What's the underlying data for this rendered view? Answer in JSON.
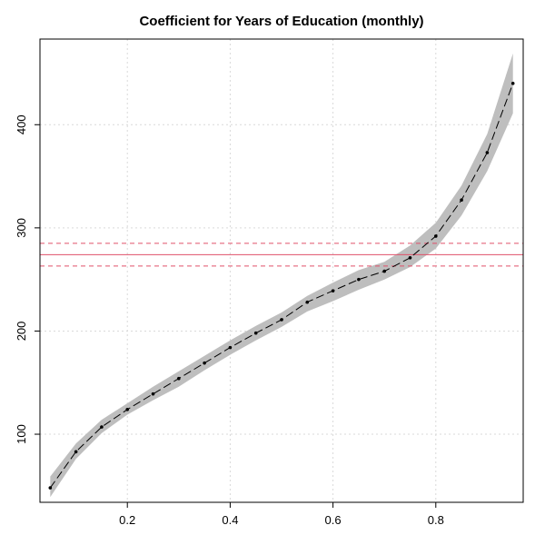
{
  "chart_data": {
    "type": "line",
    "title": "Coefficient for Years of Education (monthly)",
    "xlabel": "",
    "ylabel": "",
    "xlim": [
      0.03,
      0.97
    ],
    "ylim": [
      34,
      483
    ],
    "x_ticks": [
      0.2,
      0.4,
      0.6,
      0.8
    ],
    "y_ticks": [
      100,
      200,
      300,
      400
    ],
    "grid": true,
    "series": [
      {
        "x": [
          0.05,
          0.1,
          0.15,
          0.2,
          0.25,
          0.3,
          0.35,
          0.4,
          0.45,
          0.5,
          0.55,
          0.6,
          0.65,
          0.7,
          0.75,
          0.8,
          0.85,
          0.9,
          0.95
        ],
        "values": [
          48,
          83,
          107,
          124,
          139,
          154,
          169,
          184,
          198,
          211,
          228,
          239,
          250,
          258,
          271,
          292,
          327,
          373,
          440
        ],
        "lower": [
          39,
          76,
          101,
          119,
          133,
          146,
          162,
          177,
          191,
          204,
          219,
          229,
          240,
          250,
          262,
          280,
          312,
          355,
          411
        ],
        "upper": [
          59,
          91,
          114,
          130,
          146,
          161,
          176,
          191,
          205,
          218,
          234,
          247,
          259,
          267,
          283,
          305,
          341,
          391,
          469
        ]
      }
    ],
    "reference_lines": [
      {
        "y": 274,
        "style": "solid"
      },
      {
        "y": 285,
        "style": "dashed"
      },
      {
        "y": 263,
        "style": "dashed"
      }
    ],
    "colors": {
      "band": "#bebebe",
      "line": "#000000",
      "points": "#000000",
      "reference": "#e0506a",
      "grid": "#d9d9d9"
    }
  }
}
